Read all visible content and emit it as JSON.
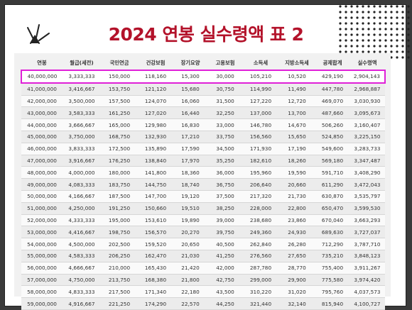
{
  "title": "2024 연봉 실수령액 표 2",
  "colors": {
    "title": "#b3122a",
    "highlight": "#e020d8"
  },
  "table": {
    "headers": [
      "연봉",
      "월급(세전)",
      "국민연금",
      "건강보험",
      "장기요양",
      "고용보험",
      "소득세",
      "지방소득세",
      "공제합계",
      "실수령액"
    ],
    "rows": [
      [
        "40,000,000",
        "3,333,333",
        "150,000",
        "118,160",
        "15,300",
        "30,000",
        "105,210",
        "10,520",
        "429,190",
        "2,904,143"
      ],
      [
        "41,000,000",
        "3,416,667",
        "153,750",
        "121,120",
        "15,680",
        "30,750",
        "114,990",
        "11,490",
        "447,780",
        "2,968,887"
      ],
      [
        "42,000,000",
        "3,500,000",
        "157,500",
        "124,070",
        "16,060",
        "31,500",
        "127,220",
        "12,720",
        "469,070",
        "3,030,930"
      ],
      [
        "43,000,000",
        "3,583,333",
        "161,250",
        "127,020",
        "16,440",
        "32,250",
        "137,000",
        "13,700",
        "487,660",
        "3,095,673"
      ],
      [
        "44,000,000",
        "3,666,667",
        "165,000",
        "129,980",
        "16,830",
        "33,000",
        "146,780",
        "14,670",
        "506,260",
        "3,160,407"
      ],
      [
        "45,000,000",
        "3,750,000",
        "168,750",
        "132,930",
        "17,210",
        "33,750",
        "156,560",
        "15,650",
        "524,850",
        "3,225,150"
      ],
      [
        "46,000,000",
        "3,833,333",
        "172,500",
        "135,890",
        "17,590",
        "34,500",
        "171,930",
        "17,190",
        "549,600",
        "3,283,733"
      ],
      [
        "47,000,000",
        "3,916,667",
        "176,250",
        "138,840",
        "17,970",
        "35,250",
        "182,610",
        "18,260",
        "569,180",
        "3,347,487"
      ],
      [
        "48,000,000",
        "4,000,000",
        "180,000",
        "141,800",
        "18,360",
        "36,000",
        "195,960",
        "19,590",
        "591,710",
        "3,408,290"
      ],
      [
        "49,000,000",
        "4,083,333",
        "183,750",
        "144,750",
        "18,740",
        "36,750",
        "206,640",
        "20,660",
        "611,290",
        "3,472,043"
      ],
      [
        "50,000,000",
        "4,166,667",
        "187,500",
        "147,700",
        "19,120",
        "37,500",
        "217,320",
        "21,730",
        "630,870",
        "3,535,797"
      ],
      [
        "51,000,000",
        "4,250,000",
        "191,250",
        "150,660",
        "19,510",
        "38,250",
        "228,000",
        "22,800",
        "650,470",
        "3,599,530"
      ],
      [
        "52,000,000",
        "4,333,333",
        "195,000",
        "153,610",
        "19,890",
        "39,000",
        "238,680",
        "23,860",
        "670,040",
        "3,663,293"
      ],
      [
        "53,000,000",
        "4,416,667",
        "198,750",
        "156,570",
        "20,270",
        "39,750",
        "249,360",
        "24,930",
        "689,630",
        "3,727,037"
      ],
      [
        "54,000,000",
        "4,500,000",
        "202,500",
        "159,520",
        "20,650",
        "40,500",
        "262,840",
        "26,280",
        "712,290",
        "3,787,710"
      ],
      [
        "55,000,000",
        "4,583,333",
        "206,250",
        "162,470",
        "21,030",
        "41,250",
        "276,560",
        "27,650",
        "735,210",
        "3,848,123"
      ],
      [
        "56,000,000",
        "4,666,667",
        "210,000",
        "165,430",
        "21,420",
        "42,000",
        "287,780",
        "28,770",
        "755,400",
        "3,911,267"
      ],
      [
        "57,000,000",
        "4,750,000",
        "213,750",
        "168,380",
        "21,800",
        "42,750",
        "299,000",
        "29,900",
        "775,580",
        "3,974,420"
      ],
      [
        "58,000,000",
        "4,833,333",
        "217,500",
        "171,340",
        "22,180",
        "43,500",
        "310,220",
        "31,020",
        "795,760",
        "4,037,573"
      ],
      [
        "59,000,000",
        "4,916,667",
        "221,250",
        "174,290",
        "22,570",
        "44,250",
        "321,440",
        "32,140",
        "815,940",
        "4,100,727"
      ]
    ]
  }
}
